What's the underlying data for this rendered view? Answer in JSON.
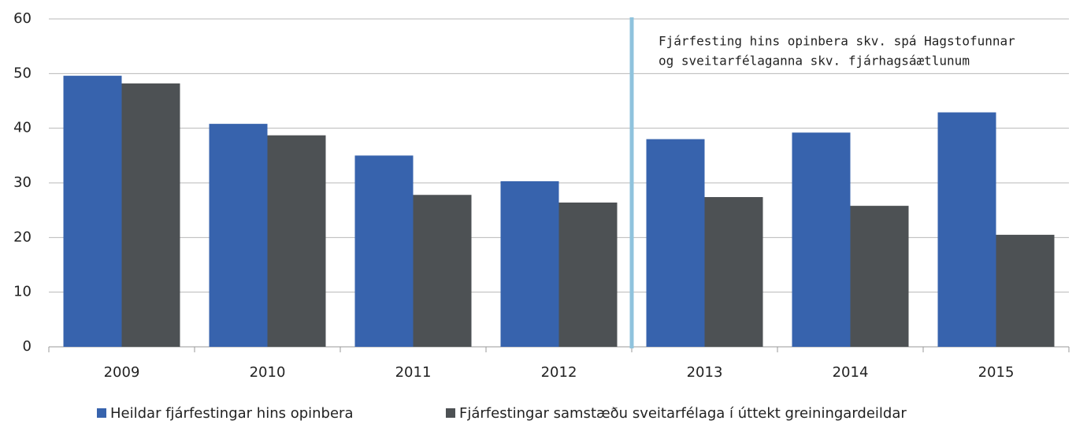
{
  "chart_data": {
    "type": "bar",
    "categories": [
      "2009",
      "2010",
      "2011",
      "2012",
      "2013",
      "2014",
      "2015"
    ],
    "series": [
      {
        "name": "Heildar fjárfestingar hins opinbera",
        "color": "#3763ad",
        "values": [
          49.6,
          40.8,
          35.0,
          30.3,
          38.0,
          39.2,
          42.9
        ]
      },
      {
        "name": "Fjárfestingar samstæðu sveitarfélaga í úttekt greiningardeildar",
        "color": "#4d5154",
        "values": [
          48.2,
          38.7,
          27.8,
          26.4,
          27.4,
          25.8,
          20.5
        ]
      }
    ],
    "annotation": [
      "Fjárfesting hins opinbera skv. spá Hagstofunnar",
      "og sveitarfélaganna skv. fjárhagsáætlunum"
    ],
    "ylim": [
      0,
      60
    ],
    "yticks": [
      0,
      10,
      20,
      30,
      40,
      50,
      60
    ],
    "grid": true,
    "legend": "bottom"
  }
}
